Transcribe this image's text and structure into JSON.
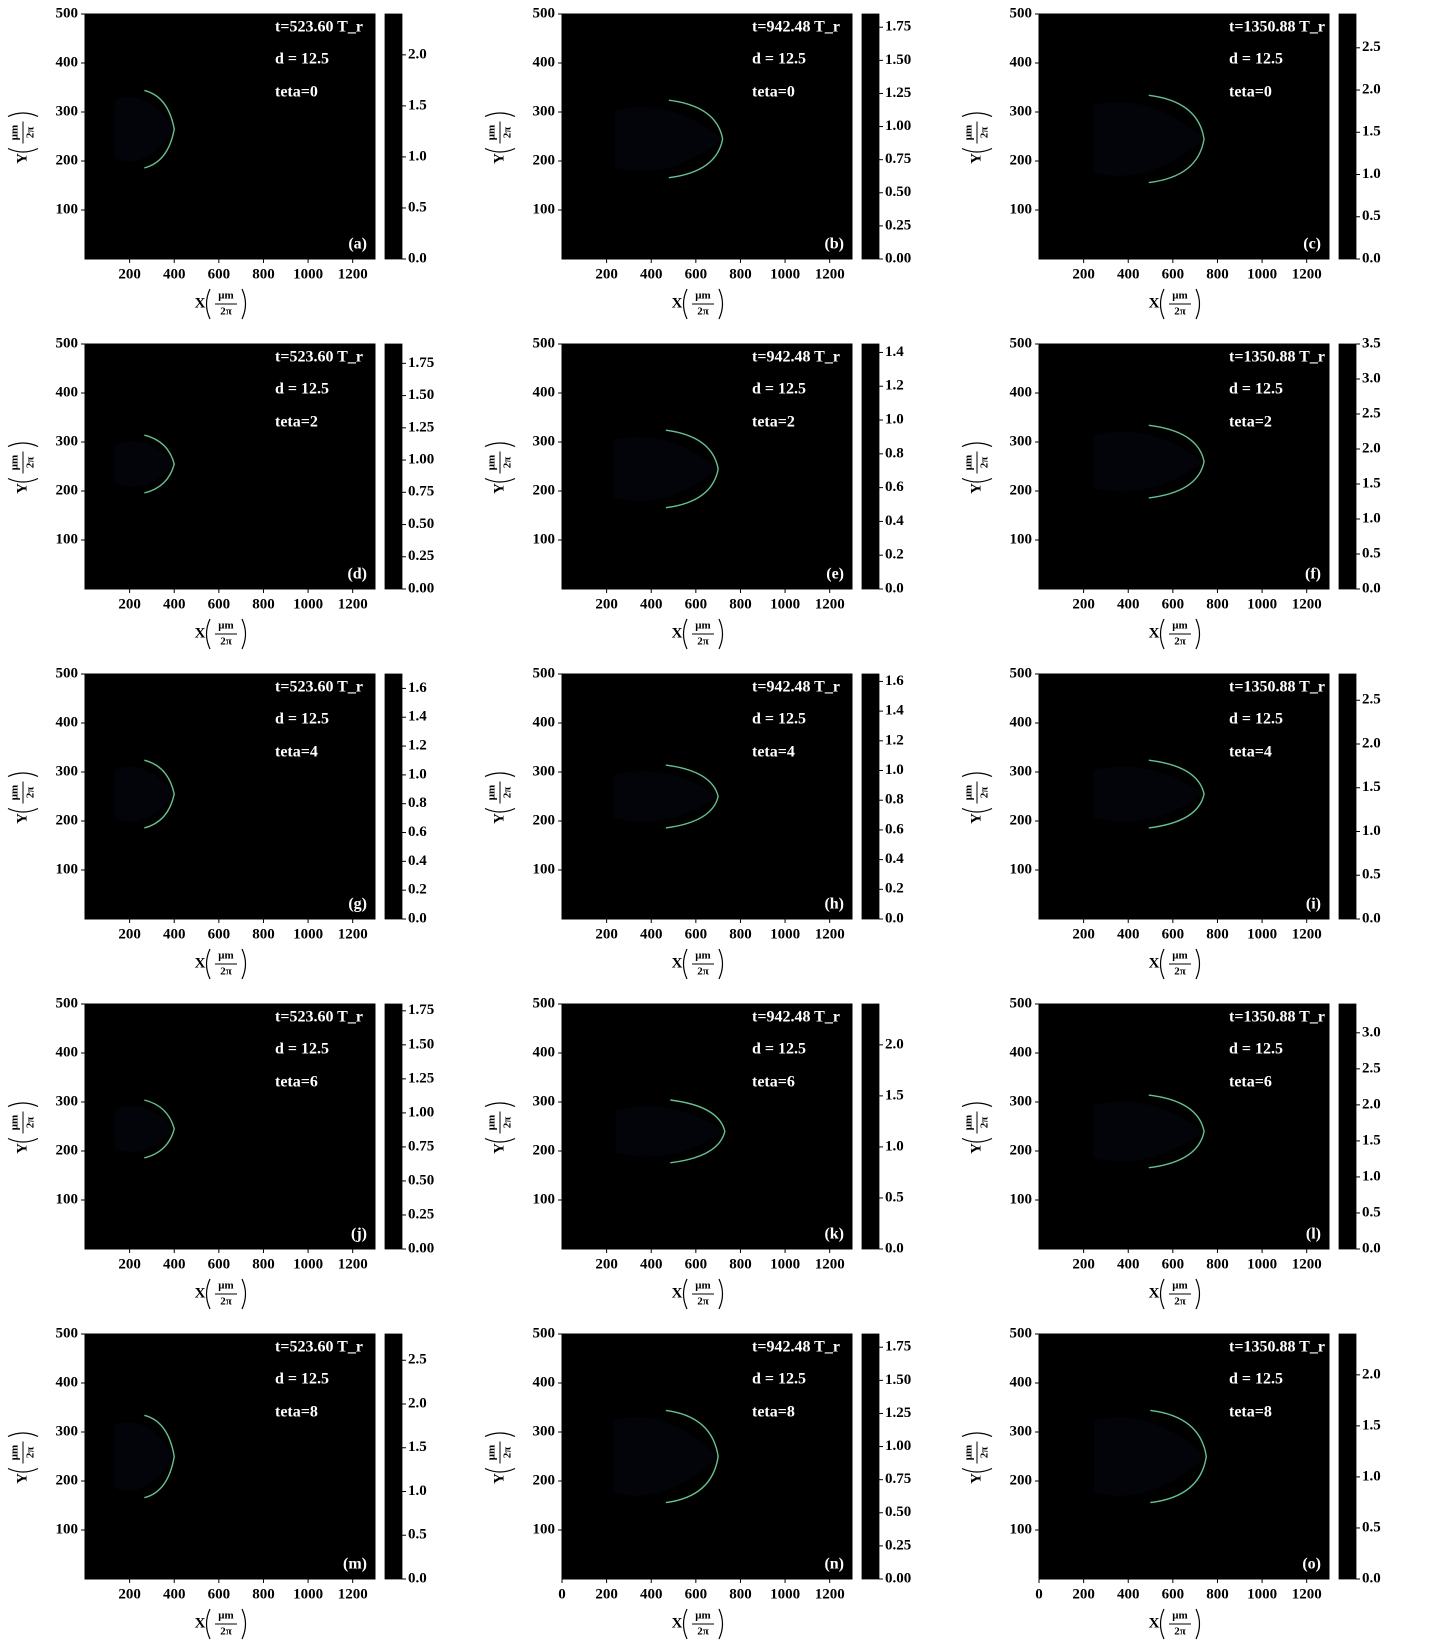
{
  "chart_data": [
    {
      "type": "heatmap",
      "title": "t=523.60 T_r",
      "annotations": [
        "d = 12.5",
        "teta=0"
      ],
      "panel_label": "(a)",
      "xlabel": "X",
      "ylabel": "Y",
      "unit_num": "μm",
      "unit_den": "2π",
      "xlim": [
        0,
        1300
      ],
      "ylim": [
        0,
        500
      ],
      "xticks": [
        200,
        400,
        600,
        800,
        1000,
        1200
      ],
      "yticks": [
        100,
        200,
        300,
        400,
        500
      ],
      "clim": [
        0,
        2.4
      ],
      "cticks": [
        {
          "value": 0,
          "label": "0.0"
        },
        0.5,
        {
          "value": 1,
          "label": "1.0"
        },
        1.5,
        {
          "value": 2,
          "label": "2.0"
        }
      ],
      "colormap": "black-blue-green",
      "field_x": [
        100,
        1300
      ],
      "field_values": [
        0,
        1.1
      ],
      "front_x": 400,
      "channel_ylim": [
        190,
        340
      ]
    },
    {
      "type": "heatmap",
      "title": "t=942.48 T_r",
      "annotations": [
        "d = 12.5",
        "teta=0"
      ],
      "panel_label": "(b)",
      "xlabel": "X",
      "ylabel": "Y",
      "unit_num": "μm",
      "unit_den": "2π",
      "xlim": [
        0,
        1300
      ],
      "ylim": [
        0,
        500
      ],
      "xticks": [
        200,
        400,
        600,
        800,
        1000,
        1200
      ],
      "yticks": [
        100,
        200,
        300,
        400,
        500
      ],
      "clim": [
        0,
        1.85
      ],
      "cticks": [
        {
          "value": 0,
          "label": "0.00"
        },
        0.25,
        {
          "value": 0.5,
          "label": "0.50"
        },
        0.75,
        {
          "value": 1,
          "label": "1.00"
        },
        1.25,
        {
          "value": 1.5,
          "label": "1.50"
        },
        1.75
      ],
      "colormap": "black-blue-green",
      "field_x": [
        100,
        1300
      ],
      "field_values": [
        0,
        1.3
      ],
      "front_x": 720,
      "channel_ylim": [
        170,
        320
      ]
    },
    {
      "type": "heatmap",
      "title": "t=1350.88 T_r",
      "annotations": [
        "d = 12.5",
        "teta=0"
      ],
      "panel_label": "(c)",
      "xlabel": "X",
      "ylabel": "Y",
      "unit_num": "μm",
      "unit_den": "2π",
      "xlim": [
        0,
        1300
      ],
      "ylim": [
        0,
        500
      ],
      "xticks": [
        200,
        400,
        600,
        800,
        1000,
        1200
      ],
      "yticks": [
        100,
        200,
        300,
        400,
        500
      ],
      "clim": [
        0,
        2.9
      ],
      "cticks": [
        {
          "value": 0,
          "label": "0.0"
        },
        0.5,
        {
          "value": 1,
          "label": "1.0"
        },
        1.5,
        {
          "value": 2,
          "label": "2.0"
        },
        2.5
      ],
      "colormap": "black-blue-green",
      "field_x": [
        100,
        1300
      ],
      "field_values": [
        0,
        1.0
      ],
      "front_x": 740,
      "channel_ylim": [
        160,
        330
      ]
    },
    {
      "type": "heatmap",
      "title": "t=523.60 T_r",
      "annotations": [
        "d = 12.5",
        "teta=2"
      ],
      "panel_label": "(d)",
      "xlabel": "X",
      "ylabel": "Y",
      "unit_num": "μm",
      "unit_den": "2π",
      "xlim": [
        0,
        1300
      ],
      "ylim": [
        0,
        500
      ],
      "xticks": [
        200,
        400,
        600,
        800,
        1000,
        1200
      ],
      "yticks": [
        100,
        200,
        300,
        400,
        500
      ],
      "clim": [
        0,
        1.9
      ],
      "cticks": [
        {
          "value": 0,
          "label": "0.00"
        },
        0.25,
        {
          "value": 0.5,
          "label": "0.50"
        },
        0.75,
        {
          "value": 1,
          "label": "1.00"
        },
        1.25,
        {
          "value": 1.5,
          "label": "1.50"
        },
        1.75
      ],
      "colormap": "black-blue-green",
      "field_x": [
        100,
        1300
      ],
      "field_values": [
        0,
        1.2
      ],
      "front_x": 400,
      "channel_ylim": [
        200,
        310
      ]
    },
    {
      "type": "heatmap",
      "title": "t=942.48 T_r",
      "annotations": [
        "d = 12.5",
        "teta=2"
      ],
      "panel_label": "(e)",
      "xlabel": "X",
      "ylabel": "Y",
      "unit_num": "μm",
      "unit_den": "2π",
      "xlim": [
        0,
        1300
      ],
      "ylim": [
        0,
        500
      ],
      "xticks": [
        200,
        400,
        600,
        800,
        1000,
        1200
      ],
      "yticks": [
        100,
        200,
        300,
        400,
        500
      ],
      "clim": [
        0,
        1.45
      ],
      "cticks": [
        {
          "value": 0,
          "label": "0.0"
        },
        0.2,
        0.4,
        0.6,
        0.8,
        {
          "value": 1,
          "label": "1.0"
        },
        1.2,
        1.4
      ],
      "colormap": "black-blue-green",
      "field_x": [
        100,
        1300
      ],
      "field_values": [
        0,
        1.2
      ],
      "front_x": 700,
      "channel_ylim": [
        170,
        320
      ]
    },
    {
      "type": "heatmap",
      "title": "t=1350.88 T_r",
      "annotations": [
        "d = 12.5",
        "teta=2"
      ],
      "panel_label": "(f)",
      "xlabel": "X",
      "ylabel": "Y",
      "unit_num": "μm",
      "unit_den": "2π",
      "xlim": [
        0,
        1300
      ],
      "ylim": [
        0,
        500
      ],
      "xticks": [
        200,
        400,
        600,
        800,
        1000,
        1200
      ],
      "yticks": [
        100,
        200,
        300,
        400,
        500
      ],
      "clim": [
        0,
        3.5
      ],
      "cticks": [
        {
          "value": 0,
          "label": "0.0"
        },
        0.5,
        {
          "value": 1,
          "label": "1.0"
        },
        1.5,
        {
          "value": 2,
          "label": "2.0"
        },
        2.5,
        {
          "value": 3,
          "label": "3.0"
        },
        3.5
      ],
      "colormap": "black-blue-green",
      "field_x": [
        100,
        1300
      ],
      "field_values": [
        0,
        1.0
      ],
      "front_x": 740,
      "channel_ylim": [
        190,
        330
      ]
    },
    {
      "type": "heatmap",
      "title": "t=523.60 T_r",
      "annotations": [
        "d = 12.5",
        "teta=4"
      ],
      "panel_label": "(g)",
      "xlabel": "X",
      "ylabel": "Y",
      "unit_num": "μm",
      "unit_den": "2π",
      "xlim": [
        0,
        1300
      ],
      "ylim": [
        0,
        500
      ],
      "xticks": [
        200,
        400,
        600,
        800,
        1000,
        1200
      ],
      "yticks": [
        100,
        200,
        300,
        400,
        500
      ],
      "clim": [
        0,
        1.7
      ],
      "cticks": [
        {
          "value": 0,
          "label": "0.0"
        },
        0.2,
        0.4,
        0.6,
        0.8,
        {
          "value": 1,
          "label": "1.0"
        },
        1.2,
        1.4,
        1.6
      ],
      "colormap": "black-blue-green",
      "field_x": [
        100,
        1300
      ],
      "field_values": [
        0,
        1.1
      ],
      "front_x": 400,
      "channel_ylim": [
        190,
        320
      ]
    },
    {
      "type": "heatmap",
      "title": "t=942.48 T_r",
      "annotations": [
        "d = 12.5",
        "teta=4"
      ],
      "panel_label": "(h)",
      "xlabel": "X",
      "ylabel": "Y",
      "unit_num": "μm",
      "unit_den": "2π",
      "xlim": [
        0,
        1300
      ],
      "ylim": [
        0,
        500
      ],
      "xticks": [
        200,
        400,
        600,
        800,
        1000,
        1200
      ],
      "yticks": [
        100,
        200,
        300,
        400,
        500
      ],
      "clim": [
        0,
        1.65
      ],
      "cticks": [
        {
          "value": 0,
          "label": "0.0"
        },
        0.2,
        0.4,
        0.6,
        0.8,
        {
          "value": 1,
          "label": "1.0"
        },
        1.2,
        1.4,
        1.6
      ],
      "colormap": "black-blue-green",
      "field_x": [
        100,
        1300
      ],
      "field_values": [
        0,
        1.2
      ],
      "front_x": 700,
      "channel_ylim": [
        190,
        310
      ]
    },
    {
      "type": "heatmap",
      "title": "t=1350.88 T_r",
      "annotations": [
        "d = 12.5",
        "teta=4"
      ],
      "panel_label": "(i)",
      "xlabel": "X",
      "ylabel": "Y",
      "unit_num": "μm",
      "unit_den": "2π",
      "xlim": [
        0,
        1300
      ],
      "ylim": [
        0,
        500
      ],
      "xticks": [
        200,
        400,
        600,
        800,
        1000,
        1200
      ],
      "yticks": [
        100,
        200,
        300,
        400,
        500
      ],
      "clim": [
        0,
        2.8
      ],
      "cticks": [
        {
          "value": 0,
          "label": "0.0"
        },
        0.5,
        {
          "value": 1,
          "label": "1.0"
        },
        1.5,
        {
          "value": 2,
          "label": "2.0"
        },
        2.5
      ],
      "colormap": "black-blue-green",
      "field_x": [
        100,
        1300
      ],
      "field_values": [
        0,
        1.1
      ],
      "front_x": 740,
      "channel_ylim": [
        190,
        320
      ]
    },
    {
      "type": "heatmap",
      "title": "t=523.60 T_r",
      "annotations": [
        "d = 12.5",
        "teta=6"
      ],
      "panel_label": "(j)",
      "xlabel": "X",
      "ylabel": "Y",
      "unit_num": "μm",
      "unit_den": "2π",
      "xlim": [
        0,
        1300
      ],
      "ylim": [
        0,
        500
      ],
      "xticks": [
        200,
        400,
        600,
        800,
        1000,
        1200
      ],
      "yticks": [
        100,
        200,
        300,
        400,
        500
      ],
      "clim": [
        0,
        1.8
      ],
      "cticks": [
        {
          "value": 0,
          "label": "0.00"
        },
        0.25,
        {
          "value": 0.5,
          "label": "0.50"
        },
        0.75,
        {
          "value": 1,
          "label": "1.00"
        },
        1.25,
        {
          "value": 1.5,
          "label": "1.50"
        },
        1.75
      ],
      "colormap": "black-blue-green",
      "field_x": [
        100,
        1300
      ],
      "field_values": [
        0,
        1.1
      ],
      "front_x": 400,
      "channel_ylim": [
        190,
        300
      ]
    },
    {
      "type": "heatmap",
      "title": "t=942.48 T_r",
      "annotations": [
        "d = 12.5",
        "teta=6"
      ],
      "panel_label": "(k)",
      "xlabel": "X",
      "ylabel": "Y",
      "unit_num": "μm",
      "unit_den": "2π",
      "xlim": [
        0,
        1300
      ],
      "ylim": [
        0,
        500
      ],
      "xticks": [
        200,
        400,
        600,
        800,
        1000,
        1200
      ],
      "yticks": [
        100,
        200,
        300,
        400,
        500
      ],
      "clim": [
        0,
        2.4
      ],
      "cticks": [
        {
          "value": 0,
          "label": "0.0"
        },
        0.5,
        {
          "value": 1,
          "label": "1.0"
        },
        1.5,
        {
          "value": 2,
          "label": "2.0"
        }
      ],
      "colormap": "black-blue-green",
      "field_x": [
        100,
        1300
      ],
      "field_values": [
        0,
        0.9
      ],
      "front_x": 730,
      "channel_ylim": [
        180,
        300
      ]
    },
    {
      "type": "heatmap",
      "title": "t=1350.88 T_r",
      "annotations": [
        "d = 12.5",
        "teta=6"
      ],
      "panel_label": "(l)",
      "xlabel": "X",
      "ylabel": "Y",
      "unit_num": "μm",
      "unit_den": "2π",
      "xlim": [
        0,
        1300
      ],
      "ylim": [
        0,
        500
      ],
      "xticks": [
        200,
        400,
        600,
        800,
        1000,
        1200
      ],
      "yticks": [
        100,
        200,
        300,
        400,
        500
      ],
      "clim": [
        0,
        3.4
      ],
      "cticks": [
        {
          "value": 0,
          "label": "0.0"
        },
        0.5,
        {
          "value": 1,
          "label": "1.0"
        },
        1.5,
        {
          "value": 2,
          "label": "2.0"
        },
        2.5,
        {
          "value": 3,
          "label": "3.0"
        }
      ],
      "colormap": "black-blue-green",
      "field_x": [
        100,
        1300
      ],
      "field_values": [
        0,
        0.9
      ],
      "front_x": 740,
      "channel_ylim": [
        170,
        310
      ]
    },
    {
      "type": "heatmap",
      "title": "t=523.60 T_r",
      "annotations": [
        "d = 12.5",
        "teta=8"
      ],
      "panel_label": "(m)",
      "xlabel": "X",
      "ylabel": "Y",
      "unit_num": "μm",
      "unit_den": "2π",
      "xlim": [
        0,
        1300
      ],
      "ylim": [
        0,
        500
      ],
      "xticks": [
        200,
        400,
        600,
        800,
        1000,
        1200
      ],
      "yticks": [
        100,
        200,
        300,
        400,
        500
      ],
      "clim": [
        0,
        2.8
      ],
      "cticks": [
        {
          "value": 0,
          "label": "0.0"
        },
        0.5,
        {
          "value": 1,
          "label": "1.0"
        },
        1.5,
        {
          "value": 2,
          "label": "2.0"
        },
        2.5
      ],
      "colormap": "black-blue-green",
      "field_x": [
        100,
        1300
      ],
      "field_values": [
        0,
        0.8
      ],
      "front_x": 400,
      "channel_ylim": [
        170,
        330
      ]
    },
    {
      "type": "heatmap",
      "title": "t=942.48 T_r",
      "annotations": [
        "d = 12.5",
        "teta=8"
      ],
      "panel_label": "(n)",
      "xlabel": "X",
      "ylabel": "Y",
      "unit_num": "μm",
      "unit_den": "2π",
      "xlim": [
        0,
        1300
      ],
      "ylim": [
        0,
        500
      ],
      "xticks": [
        0,
        200,
        400,
        600,
        800,
        1000,
        1200
      ],
      "yticks": [
        100,
        200,
        300,
        400,
        500
      ],
      "clim": [
        0,
        1.85
      ],
      "cticks": [
        {
          "value": 0,
          "label": "0.00"
        },
        0.25,
        {
          "value": 0.5,
          "label": "0.50"
        },
        0.75,
        {
          "value": 1,
          "label": "1.00"
        },
        1.25,
        {
          "value": 1.5,
          "label": "1.50"
        },
        1.75
      ],
      "colormap": "black-blue-green",
      "field_x": [
        100,
        1300
      ],
      "field_values": [
        0,
        0.7
      ],
      "front_x": 700,
      "channel_ylim": [
        160,
        340
      ]
    },
    {
      "type": "heatmap",
      "title": "t=1350.88 T_r",
      "annotations": [
        "d = 12.5",
        "teta=8"
      ],
      "panel_label": "(o)",
      "xlabel": "X",
      "ylabel": "Y",
      "unit_num": "μm",
      "unit_den": "2π",
      "xlim": [
        0,
        1300
      ],
      "ylim": [
        0,
        500
      ],
      "xticks": [
        0,
        200,
        400,
        600,
        800,
        1000,
        1200
      ],
      "yticks": [
        100,
        200,
        300,
        400,
        500
      ],
      "clim": [
        0,
        2.4
      ],
      "cticks": [
        {
          "value": 0,
          "label": "0.0"
        },
        0.5,
        {
          "value": 1,
          "label": "1.0"
        },
        1.5,
        {
          "value": 2,
          "label": "2.0"
        }
      ],
      "colormap": "black-blue-green",
      "field_x": [
        100,
        1300
      ],
      "field_values": [
        0,
        1.0
      ],
      "front_x": 750,
      "channel_ylim": [
        160,
        340
      ]
    }
  ]
}
